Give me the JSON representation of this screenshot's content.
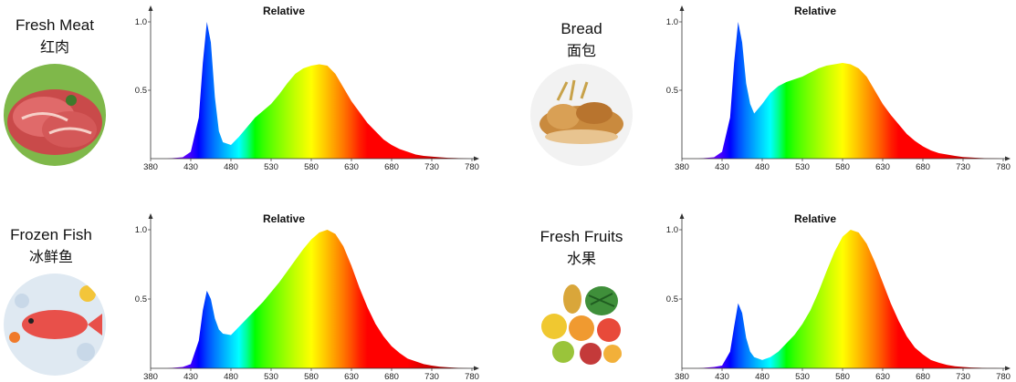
{
  "panels": [
    {
      "label_en": "Fresh Meat",
      "label_cn": "红肉",
      "photo_icon": "raw-meat-photo"
    },
    {
      "label_en": "Bread",
      "label_cn": "面包",
      "photo_icon": "bread-photo"
    },
    {
      "label_en": "Frozen Fish",
      "label_cn": "冰鲜鱼",
      "photo_icon": "fish-on-ice-photo"
    },
    {
      "label_en": "Fresh Fruits",
      "label_cn": "水果",
      "photo_icon": "fruit-basket-photo"
    }
  ],
  "chart_data": [
    {
      "type": "area",
      "title": "Relative",
      "xlabel": "",
      "ylabel": "",
      "xlim": [
        380,
        780
      ],
      "ylim": [
        0,
        1.0
      ],
      "x_ticks": [
        380,
        430,
        480,
        530,
        580,
        630,
        680,
        730,
        780
      ],
      "y_ticks": [
        0.5,
        1.0
      ],
      "x": [
        380,
        400,
        420,
        430,
        440,
        445,
        450,
        455,
        460,
        465,
        470,
        480,
        490,
        500,
        510,
        520,
        530,
        540,
        550,
        560,
        570,
        580,
        590,
        600,
        610,
        620,
        630,
        640,
        650,
        660,
        670,
        680,
        690,
        700,
        710,
        720,
        730,
        740,
        750,
        760,
        770,
        780
      ],
      "series": [
        {
          "values": [
            0,
            0,
            0.01,
            0.05,
            0.3,
            0.7,
            1.0,
            0.85,
            0.45,
            0.2,
            0.12,
            0.1,
            0.16,
            0.23,
            0.3,
            0.35,
            0.4,
            0.47,
            0.55,
            0.62,
            0.66,
            0.68,
            0.69,
            0.68,
            0.62,
            0.52,
            0.42,
            0.34,
            0.26,
            0.2,
            0.14,
            0.1,
            0.07,
            0.05,
            0.03,
            0.02,
            0.015,
            0.01,
            0.006,
            0.004,
            0.002,
            0.0
          ]
        }
      ]
    },
    {
      "type": "area",
      "title": "Relative",
      "xlabel": "",
      "ylabel": "",
      "xlim": [
        380,
        780
      ],
      "ylim": [
        0,
        1.0
      ],
      "x_ticks": [
        380,
        430,
        480,
        530,
        580,
        630,
        680,
        730,
        780
      ],
      "y_ticks": [
        0.5,
        1.0
      ],
      "x": [
        380,
        400,
        420,
        430,
        440,
        445,
        450,
        455,
        460,
        465,
        470,
        480,
        490,
        500,
        510,
        520,
        530,
        540,
        550,
        560,
        570,
        580,
        590,
        600,
        610,
        620,
        630,
        640,
        650,
        660,
        670,
        680,
        690,
        700,
        710,
        720,
        730,
        740,
        750,
        760,
        770,
        780
      ],
      "series": [
        {
          "values": [
            0,
            0,
            0.01,
            0.05,
            0.3,
            0.7,
            1.0,
            0.85,
            0.55,
            0.4,
            0.33,
            0.4,
            0.48,
            0.53,
            0.56,
            0.58,
            0.6,
            0.63,
            0.66,
            0.68,
            0.69,
            0.7,
            0.69,
            0.66,
            0.6,
            0.5,
            0.4,
            0.32,
            0.25,
            0.18,
            0.13,
            0.09,
            0.06,
            0.04,
            0.03,
            0.02,
            0.012,
            0.008,
            0.005,
            0.003,
            0.001,
            0.0
          ]
        }
      ]
    },
    {
      "type": "area",
      "title": "Relative",
      "xlabel": "",
      "ylabel": "",
      "xlim": [
        380,
        780
      ],
      "ylim": [
        0,
        1.0
      ],
      "x_ticks": [
        380,
        430,
        480,
        530,
        580,
        630,
        680,
        730,
        780
      ],
      "y_ticks": [
        0.5,
        1.0
      ],
      "x": [
        380,
        400,
        420,
        430,
        440,
        445,
        450,
        455,
        460,
        465,
        470,
        480,
        490,
        500,
        510,
        520,
        530,
        540,
        550,
        560,
        570,
        580,
        590,
        600,
        610,
        620,
        630,
        640,
        650,
        660,
        670,
        680,
        690,
        700,
        710,
        720,
        730,
        740,
        750,
        760,
        770,
        780
      ],
      "series": [
        {
          "values": [
            0,
            0,
            0.01,
            0.03,
            0.2,
            0.42,
            0.56,
            0.5,
            0.36,
            0.28,
            0.25,
            0.24,
            0.3,
            0.36,
            0.42,
            0.48,
            0.55,
            0.62,
            0.7,
            0.78,
            0.86,
            0.93,
            0.98,
            1.0,
            0.97,
            0.88,
            0.74,
            0.58,
            0.44,
            0.32,
            0.23,
            0.16,
            0.11,
            0.07,
            0.05,
            0.03,
            0.02,
            0.012,
            0.007,
            0.004,
            0.002,
            0.0
          ]
        }
      ]
    },
    {
      "type": "area",
      "title": "Relative",
      "xlabel": "",
      "ylabel": "",
      "xlim": [
        380,
        780
      ],
      "ylim": [
        0,
        1.0
      ],
      "x_ticks": [
        380,
        430,
        480,
        530,
        580,
        630,
        680,
        730,
        780
      ],
      "y_ticks": [
        0.5,
        1.0
      ],
      "x": [
        380,
        400,
        420,
        430,
        440,
        445,
        450,
        455,
        460,
        465,
        470,
        480,
        490,
        500,
        510,
        520,
        530,
        540,
        550,
        560,
        570,
        580,
        590,
        600,
        610,
        620,
        630,
        640,
        650,
        660,
        670,
        680,
        690,
        700,
        710,
        720,
        730,
        740,
        750,
        760,
        770,
        780
      ],
      "series": [
        {
          "values": [
            0,
            0,
            0.01,
            0.02,
            0.12,
            0.3,
            0.47,
            0.4,
            0.22,
            0.12,
            0.08,
            0.06,
            0.08,
            0.12,
            0.18,
            0.24,
            0.32,
            0.42,
            0.55,
            0.7,
            0.84,
            0.95,
            1.0,
            0.98,
            0.9,
            0.77,
            0.62,
            0.47,
            0.34,
            0.23,
            0.15,
            0.1,
            0.06,
            0.04,
            0.025,
            0.015,
            0.01,
            0.006,
            0.004,
            0.002,
            0.001,
            0.0
          ]
        }
      ]
    }
  ]
}
